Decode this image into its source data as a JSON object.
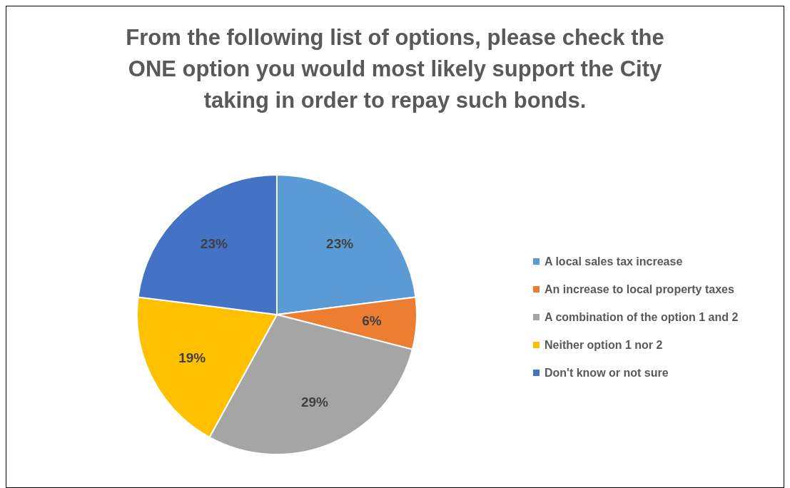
{
  "chart_data": {
    "type": "pie",
    "title": "From the following list of options, please check the ONE option you would most likely support the City taking in order to repay such bonds.",
    "categories": [
      "A local sales tax increase",
      "An increase to local property taxes",
      "A combination of the option 1 and 2",
      "Neither option 1 nor 2",
      "Don't know or not sure"
    ],
    "values": [
      23,
      6,
      29,
      19,
      23
    ],
    "colors": [
      "#5b9bd5",
      "#ed7d31",
      "#a5a5a5",
      "#ffc000",
      "#4472c4"
    ],
    "value_labels": [
      "23%",
      "6%",
      "29%",
      "19%",
      "23%"
    ],
    "legend": "right"
  }
}
